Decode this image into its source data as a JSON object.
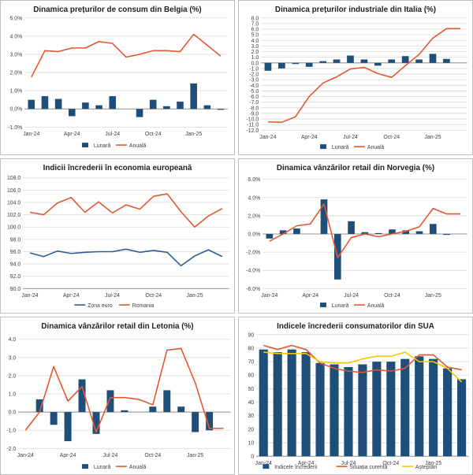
{
  "colors": {
    "bar": "#1f4e79",
    "bar2": "#1f4e79",
    "anuala": "#e4572e",
    "zona": "#2e5d8c",
    "yellow": "#f2c80f"
  },
  "chart_data": [
    {
      "type": "bar+line",
      "title": "Dinamica prețurilor de consum din Belgia (%)",
      "x": [
        "Jan-24",
        "Feb-24",
        "Mar-24",
        "Apr-24",
        "May-24",
        "Jun-24",
        "Jul-24",
        "Aug-24",
        "Sep-24",
        "Oct-24",
        "Nov-24",
        "Dec-24",
        "Jan-25",
        "Feb-25",
        "Mar-25"
      ],
      "xticks": [
        "Jan-24",
        "Apr-24",
        "Jul-24",
        "Oct-24",
        "Jan-25"
      ],
      "yticks": [
        "-1.0%",
        "0.0%",
        "1.0%",
        "2.0%",
        "3.0%",
        "4.0%",
        "5.0%"
      ],
      "ylim": [
        -1,
        5
      ],
      "ystep": 1,
      "series": [
        {
          "name": "Lunară",
          "kind": "bar",
          "values": [
            0.5,
            0.7,
            0.55,
            -0.4,
            0.35,
            0.2,
            0.7,
            0.0,
            -0.45,
            0.5,
            0.15,
            0.4,
            1.4,
            0.2,
            -0.05
          ]
        },
        {
          "name": "Anuală",
          "kind": "line",
          "values": [
            1.75,
            3.2,
            3.15,
            3.35,
            3.35,
            3.7,
            3.6,
            2.85,
            3.0,
            3.2,
            3.2,
            3.15,
            4.1,
            3.5,
            2.9
          ]
        }
      ],
      "legend": [
        "Lunară",
        "Anuală"
      ]
    },
    {
      "type": "bar+line",
      "title": "Dinamica prețurilor industriale din Italia (%)",
      "x": [
        "Jan-24",
        "Feb-24",
        "Mar-24",
        "Apr-24",
        "May-24",
        "Jun-24",
        "Jul-24",
        "Aug-24",
        "Sep-24",
        "Oct-24",
        "Nov-24",
        "Dec-24",
        "Jan-25",
        "Feb-25",
        "Mar-25"
      ],
      "xticks": [
        "Jan-24",
        "Apr-24",
        "Jul-24",
        "Oct-24",
        "Jan-25"
      ],
      "yticks": [
        "-12.0",
        "-11.0",
        "-10.0",
        "-9.0",
        "-8.0",
        "-7.0",
        "-6.0",
        "-5.0",
        "-4.0",
        "-3.0",
        "-2.0",
        "-1.0",
        "0.0",
        "1.0",
        "2.0",
        "3.0",
        "4.0",
        "5.0",
        "6.0",
        "7.0",
        "8.0"
      ],
      "ylim": [
        -12,
        8
      ],
      "ystep": 1,
      "series": [
        {
          "name": "Lunară",
          "kind": "bar",
          "values": [
            -1.4,
            -1.0,
            -0.2,
            -0.7,
            0.3,
            0.6,
            1.3,
            0.6,
            -0.5,
            0.6,
            1.2,
            0.6,
            1.6,
            0.7,
            0.0
          ]
        },
        {
          "name": "Anuală",
          "kind": "line",
          "values": [
            -10.5,
            -10.6,
            -9.6,
            -6.0,
            -3.6,
            -2.5,
            -1.1,
            -0.8,
            -1.9,
            -2.6,
            -0.5,
            1.5,
            4.4,
            6.1,
            6.1
          ]
        }
      ],
      "legend": [
        "Lunară",
        "Anuală"
      ]
    },
    {
      "type": "line",
      "title": "Indicii încrederii în economia europeană",
      "x": [
        "Jan-24",
        "Feb-24",
        "Mar-24",
        "Apr-24",
        "May-24",
        "Jun-24",
        "Jul-24",
        "Aug-24",
        "Sep-24",
        "Oct-24",
        "Nov-24",
        "Dec-24",
        "Jan-25",
        "Feb-25",
        "Mar-25"
      ],
      "xticks": [
        "Jan-24",
        "Apr-24",
        "Jul-24",
        "Oct-24",
        "Jan-25"
      ],
      "yticks": [
        "90.0",
        "92.0",
        "94.0",
        "96.0",
        "98.0",
        "100.0",
        "102.0",
        "104.0",
        "106.0",
        "108.0"
      ],
      "ylim": [
        90,
        108
      ],
      "ystep": 2,
      "series": [
        {
          "name": "Zona euro",
          "kind": "line",
          "values": [
            95.8,
            95.2,
            96.1,
            95.7,
            95.9,
            96.0,
            96.0,
            96.4,
            95.9,
            96.2,
            95.9,
            93.7,
            95.3,
            96.3,
            95.2
          ]
        },
        {
          "name": "Romania",
          "kind": "line",
          "values": [
            102.4,
            102.0,
            103.9,
            104.8,
            102.4,
            104.1,
            102.3,
            103.6,
            102.9,
            105.0,
            105.4,
            102.5,
            100.0,
            101.8,
            103.0
          ]
        }
      ],
      "legend": [
        "Zona euro",
        "Romania"
      ]
    },
    {
      "type": "bar+line",
      "title": "Dinamica vânzărilor retail din Norvegia (%)",
      "x": [
        "Jan-24",
        "Feb-24",
        "Mar-24",
        "Apr-24",
        "May-24",
        "Jun-24",
        "Jul-24",
        "Aug-24",
        "Sep-24",
        "Oct-24",
        "Nov-24",
        "Dec-24",
        "Jan-25",
        "Feb-25",
        "Mar-25"
      ],
      "xticks": [
        "Jan-24",
        "Apr-24",
        "Jul-24",
        "Oct-24",
        "Jan-25"
      ],
      "yticks": [
        "-6.0%",
        "-4.0%",
        "-2.0%",
        "0.0%",
        "2.0%",
        "4.0%",
        "6.0%"
      ],
      "ylim": [
        -6,
        6
      ],
      "ystep": 2,
      "series": [
        {
          "name": "Lunară",
          "kind": "bar",
          "values": [
            -0.5,
            0.4,
            0.6,
            0.0,
            3.8,
            -5.0,
            1.4,
            0.2,
            0.1,
            0.5,
            0.4,
            0.3,
            1.1,
            -0.1,
            0.0
          ]
        },
        {
          "name": "Anuală",
          "kind": "line",
          "values": [
            -0.8,
            0.0,
            0.9,
            1.1,
            3.3,
            -2.6,
            -0.4,
            0.0,
            -0.3,
            0.0,
            0.3,
            0.8,
            2.8,
            2.2,
            2.2
          ]
        }
      ],
      "legend": [
        "Lunară",
        "Anuală"
      ]
    },
    {
      "type": "bar+line",
      "title": "Dinamica vânzărilor retail din Letonia (%)",
      "x": [
        "Jan-24",
        "Feb-24",
        "Mar-24",
        "Apr-24",
        "May-24",
        "Jun-24",
        "Jul-24",
        "Aug-24",
        "Sep-24",
        "Oct-24",
        "Nov-24",
        "Dec-24",
        "Jan-25",
        "Feb-25",
        "Mar-25"
      ],
      "xticks": [
        "Jan-24",
        "Apr-24",
        "Jul-24",
        "Oct-24",
        "Jan-25"
      ],
      "yticks": [
        "-2.0",
        "-1.0",
        "0.0",
        "1.0",
        "2.0",
        "3.0",
        "4.0"
      ],
      "ylim": [
        -2,
        4
      ],
      "ystep": 1,
      "series": [
        {
          "name": "Lunară",
          "kind": "bar",
          "values": [
            0.0,
            0.7,
            -0.7,
            -1.6,
            1.8,
            -1.2,
            1.2,
            0.1,
            0.0,
            0.3,
            1.2,
            0.3,
            -1.1,
            -1.0,
            0.0
          ]
        },
        {
          "name": "Anuală",
          "kind": "line",
          "values": [
            -1.0,
            0.0,
            2.5,
            0.6,
            1.4,
            -1.1,
            0.8,
            0.8,
            0.7,
            0.4,
            3.4,
            3.5,
            1.6,
            -0.9,
            -0.9
          ]
        }
      ],
      "legend": [
        "Lunară",
        "Anuală"
      ]
    },
    {
      "type": "bar+line",
      "title": "Indicele încrederii consumatorilor din SUA",
      "x": [
        "Jan-24",
        "Feb-24",
        "Mar-24",
        "Apr-24",
        "May-24",
        "Jun-24",
        "Jul-24",
        "Aug-24",
        "Sep-24",
        "Oct-24",
        "Nov-24",
        "Dec-24",
        "Jan-25",
        "Feb-25",
        "Mar-25"
      ],
      "xticks": [
        "Jan-24",
        "Apr-24",
        "Jul-24",
        "Oct-24",
        "Jan-25"
      ],
      "yticks": [
        "0",
        "10",
        "20",
        "30",
        "40",
        "50",
        "60",
        "70",
        "80",
        "90"
      ],
      "ylim": [
        0,
        90
      ],
      "ystep": 10,
      "series": [
        {
          "name": "Indicele încrederii",
          "kind": "bar",
          "values": [
            79,
            77,
            79,
            77,
            69,
            68,
            66,
            68,
            70,
            70,
            72,
            74,
            72,
            65,
            57
          ]
        },
        {
          "name": "Situația curentă",
          "kind": "line",
          "values": [
            82,
            79,
            82,
            79,
            69,
            65,
            63,
            62,
            64,
            63,
            65,
            75,
            75,
            66,
            64
          ]
        },
        {
          "name": "Așteptări",
          "kind": "line",
          "values": [
            77,
            76,
            76,
            76,
            70,
            69,
            69,
            72,
            74,
            74,
            77,
            70,
            70,
            65,
            55
          ]
        }
      ],
      "legend": [
        "Indicele încrederii",
        "Situația curentă",
        "Așteptări"
      ]
    }
  ]
}
